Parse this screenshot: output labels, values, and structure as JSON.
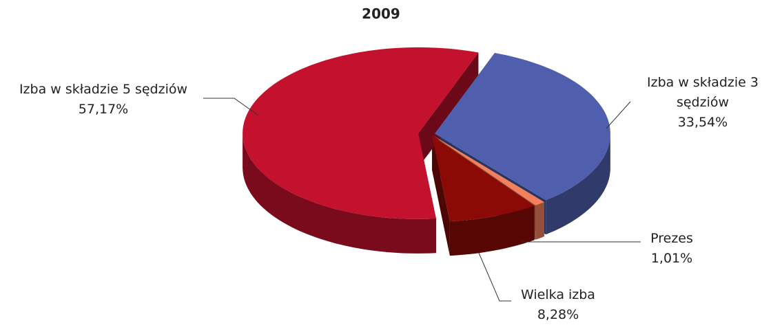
{
  "chart_data": {
    "type": "pie3d",
    "title": "2009",
    "categories": [
      "Izba w składzie 3 sędziów",
      "Prezes",
      "Wielka izba",
      "Izba w składzie 5 sędziów"
    ],
    "values": [
      33.54,
      1.01,
      8.28,
      57.17
    ],
    "value_labels": [
      "33,54%",
      "1,01%",
      "8,28%",
      "57,17%"
    ],
    "colors": [
      "#4f5fad",
      "#f2805e",
      "#8b0a05",
      "#c3112e"
    ]
  }
}
